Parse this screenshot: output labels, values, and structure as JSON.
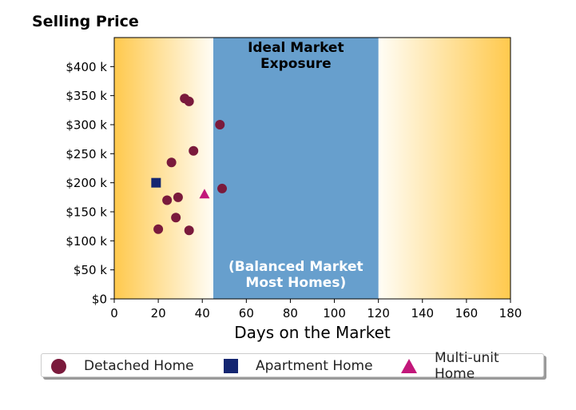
{
  "chart_data": {
    "type": "scatter",
    "title": "Selling Price",
    "xlabel": "Days on the Market",
    "ylabel": "",
    "xlim": [
      0,
      180
    ],
    "ylim": [
      0,
      450000
    ],
    "x_ticks": [
      0,
      20,
      40,
      60,
      80,
      100,
      120,
      140,
      160,
      180
    ],
    "x_tick_labels": [
      "0",
      "20",
      "40",
      "60",
      "80",
      "100",
      "120",
      "140",
      "160",
      "180"
    ],
    "y_ticks": [
      0,
      50000,
      100000,
      150000,
      200000,
      250000,
      300000,
      350000,
      400000
    ],
    "y_tick_labels": [
      "$0",
      "$50 k",
      "$100 k",
      "$150 k",
      "$200 k",
      "$250 k",
      "$300 k",
      "$350 k",
      "$400 k"
    ],
    "grid": false,
    "background_gradient_colors": [
      "#ffc94d",
      "#fffdf6"
    ],
    "ideal_band": {
      "x_range": [
        45,
        120
      ],
      "color": "#679fcd",
      "top_label": [
        "Ideal Market",
        "Exposure"
      ],
      "bottom_label": [
        "(Balanced Market",
        "Most Homes)"
      ]
    },
    "series": [
      {
        "name": "Detached Home",
        "marker": "circle",
        "color": "#7a1a3c",
        "x": [
          32,
          34,
          48,
          36,
          26,
          49,
          29,
          24,
          28,
          20,
          34
        ],
        "y": [
          345000,
          340000,
          300000,
          255000,
          235000,
          190000,
          175000,
          170000,
          140000,
          120000,
          118000
        ]
      },
      {
        "name": "Apartment Home",
        "marker": "square",
        "color": "#142671",
        "x": [
          19
        ],
        "y": [
          200000
        ]
      },
      {
        "name": "Multi-unit Home",
        "marker": "triangle",
        "color": "#c2177a",
        "x": [
          41
        ],
        "y": [
          180000
        ]
      }
    ],
    "legend_position": "bottom"
  }
}
